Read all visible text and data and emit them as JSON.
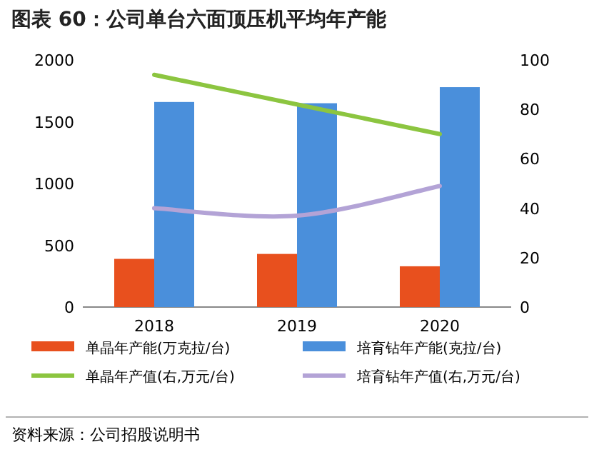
{
  "chart_data": {
    "type": "bar",
    "title": "图表 60：公司单台六面顶压机平均年产能",
    "categories": [
      "2018",
      "2019",
      "2020"
    ],
    "series": [
      {
        "name": "单晶年产能(万克拉/台)",
        "color": "#e8501e",
        "values": [
          390,
          430,
          330
        ]
      },
      {
        "name": "培育钻年产能(克拉/台)",
        "color": "#4a8fdb",
        "values": [
          1660,
          1650,
          1780
        ]
      },
      {
        "name": "单晶年产值(右,万元/台)",
        "color": "#8cc540",
        "type": "line",
        "axis": "y2",
        "values": [
          94,
          82,
          70
        ]
      },
      {
        "name": "培育钻年产值(右,万元/台)",
        "color": "#b3a3d6",
        "type": "line",
        "axis": "y2",
        "values": [
          40,
          37,
          49
        ]
      }
    ],
    "ylim": [
      0,
      2000
    ],
    "yticks": [
      0,
      500,
      1000,
      1500,
      2000
    ],
    "y2lim": [
      0,
      100
    ],
    "y2ticks": [
      0,
      20,
      40,
      60,
      80,
      100
    ],
    "legend": "bottom",
    "annotations": [
      "资料来源：公司招股说明书"
    ]
  }
}
